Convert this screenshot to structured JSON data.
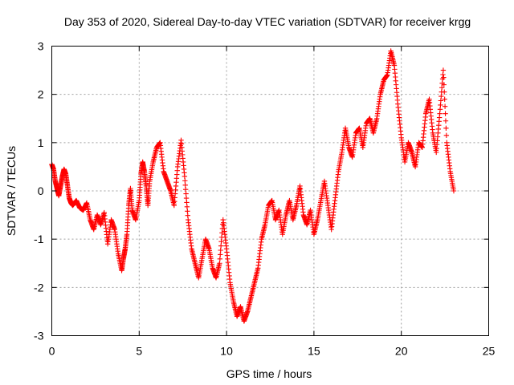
{
  "chart_data": {
    "type": "scatter",
    "title": "Day 353 of 2020, Sidereal Day-to-day VTEC variation (SDTVAR) for receiver krgg",
    "xlabel": "GPS time / hours",
    "ylabel": "SDTVAR / TECUs",
    "xlim": [
      0,
      25
    ],
    "ylim": [
      -3,
      3
    ],
    "xticks": [
      0,
      5,
      10,
      15,
      20,
      25
    ],
    "xtick_labels": [
      "0",
      "5",
      "10",
      "15",
      "20",
      "25"
    ],
    "yticks": [
      -3,
      -2,
      -1,
      0,
      1,
      2,
      3
    ],
    "ytick_labels": [
      "-3",
      "-2",
      "-1",
      "0",
      "1",
      "2",
      "3"
    ],
    "grid": true,
    "marker": "plus",
    "color": "#ff0000",
    "series": [
      {
        "name": "SDTVAR",
        "points": [
          [
            0.0,
            0.55
          ],
          [
            0.1,
            0.45
          ],
          [
            0.2,
            0.2
          ],
          [
            0.3,
            0.05
          ],
          [
            0.4,
            -0.1
          ],
          [
            0.5,
            0.1
          ],
          [
            0.6,
            0.3
          ],
          [
            0.7,
            0.45
          ],
          [
            0.8,
            0.35
          ],
          [
            0.9,
            0.1
          ],
          [
            1.0,
            -0.15
          ],
          [
            1.1,
            -0.25
          ],
          [
            1.2,
            -0.3
          ],
          [
            1.4,
            -0.2
          ],
          [
            1.6,
            -0.35
          ],
          [
            1.8,
            -0.4
          ],
          [
            2.0,
            -0.25
          ],
          [
            2.2,
            -0.6
          ],
          [
            2.4,
            -0.8
          ],
          [
            2.6,
            -0.5
          ],
          [
            2.8,
            -0.7
          ],
          [
            3.0,
            -0.45
          ],
          [
            3.2,
            -1.1
          ],
          [
            3.4,
            -0.6
          ],
          [
            3.6,
            -0.8
          ],
          [
            3.8,
            -1.3
          ],
          [
            4.0,
            -1.65
          ],
          [
            4.1,
            -1.4
          ],
          [
            4.2,
            -1.2
          ],
          [
            4.3,
            -0.9
          ],
          [
            4.4,
            -0.3
          ],
          [
            4.5,
            0.05
          ],
          [
            4.6,
            -0.4
          ],
          [
            4.8,
            -0.6
          ],
          [
            5.0,
            -0.2
          ],
          [
            5.1,
            0.35
          ],
          [
            5.2,
            0.6
          ],
          [
            5.3,
            0.4
          ],
          [
            5.4,
            0.1
          ],
          [
            5.5,
            -0.3
          ],
          [
            5.6,
            0.2
          ],
          [
            5.8,
            0.6
          ],
          [
            6.0,
            0.9
          ],
          [
            6.2,
            1.0
          ],
          [
            6.4,
            0.4
          ],
          [
            6.6,
            0.2
          ],
          [
            6.8,
            0.0
          ],
          [
            7.0,
            -0.3
          ],
          [
            7.2,
            0.5
          ],
          [
            7.4,
            1.05
          ],
          [
            7.6,
            0.3
          ],
          [
            7.8,
            -0.6
          ],
          [
            8.0,
            -1.2
          ],
          [
            8.2,
            -1.5
          ],
          [
            8.4,
            -1.8
          ],
          [
            8.6,
            -1.4
          ],
          [
            8.8,
            -1.0
          ],
          [
            9.0,
            -1.2
          ],
          [
            9.2,
            -1.6
          ],
          [
            9.4,
            -1.8
          ],
          [
            9.6,
            -1.5
          ],
          [
            9.8,
            -0.6
          ],
          [
            10.0,
            -1.2
          ],
          [
            10.2,
            -1.9
          ],
          [
            10.4,
            -2.3
          ],
          [
            10.6,
            -2.6
          ],
          [
            10.8,
            -2.4
          ],
          [
            11.0,
            -2.7
          ],
          [
            11.2,
            -2.5
          ],
          [
            11.4,
            -2.2
          ],
          [
            11.6,
            -1.9
          ],
          [
            11.8,
            -1.6
          ],
          [
            12.0,
            -1.0
          ],
          [
            12.2,
            -0.7
          ],
          [
            12.4,
            -0.3
          ],
          [
            12.6,
            -0.2
          ],
          [
            12.8,
            -0.6
          ],
          [
            13.0,
            -0.4
          ],
          [
            13.2,
            -0.9
          ],
          [
            13.4,
            -0.5
          ],
          [
            13.6,
            -0.2
          ],
          [
            13.8,
            -0.6
          ],
          [
            14.0,
            -0.3
          ],
          [
            14.2,
            0.1
          ],
          [
            14.4,
            -0.5
          ],
          [
            14.6,
            -0.7
          ],
          [
            14.8,
            -0.4
          ],
          [
            15.0,
            -0.9
          ],
          [
            15.2,
            -0.6
          ],
          [
            15.4,
            -0.2
          ],
          [
            15.6,
            0.2
          ],
          [
            15.8,
            -0.3
          ],
          [
            16.0,
            -0.8
          ],
          [
            16.2,
            -0.2
          ],
          [
            16.4,
            0.4
          ],
          [
            16.6,
            0.8
          ],
          [
            16.8,
            1.3
          ],
          [
            17.0,
            0.9
          ],
          [
            17.2,
            0.7
          ],
          [
            17.4,
            1.2
          ],
          [
            17.6,
            1.3
          ],
          [
            17.8,
            0.9
          ],
          [
            18.0,
            1.4
          ],
          [
            18.2,
            1.5
          ],
          [
            18.4,
            1.2
          ],
          [
            18.6,
            1.5
          ],
          [
            18.8,
            2.0
          ],
          [
            19.0,
            2.3
          ],
          [
            19.2,
            2.4
          ],
          [
            19.4,
            2.9
          ],
          [
            19.6,
            2.6
          ],
          [
            19.8,
            1.8
          ],
          [
            20.0,
            1.1
          ],
          [
            20.2,
            0.6
          ],
          [
            20.4,
            1.0
          ],
          [
            20.6,
            0.8
          ],
          [
            20.8,
            0.5
          ],
          [
            21.0,
            1.0
          ],
          [
            21.2,
            0.9
          ],
          [
            21.4,
            1.6
          ],
          [
            21.6,
            1.9
          ],
          [
            21.8,
            1.2
          ],
          [
            22.0,
            0.8
          ],
          [
            22.2,
            1.6
          ],
          [
            22.4,
            2.5
          ],
          [
            22.6,
            1.0
          ],
          [
            22.8,
            0.4
          ],
          [
            23.0,
            0.0
          ]
        ]
      }
    ]
  }
}
